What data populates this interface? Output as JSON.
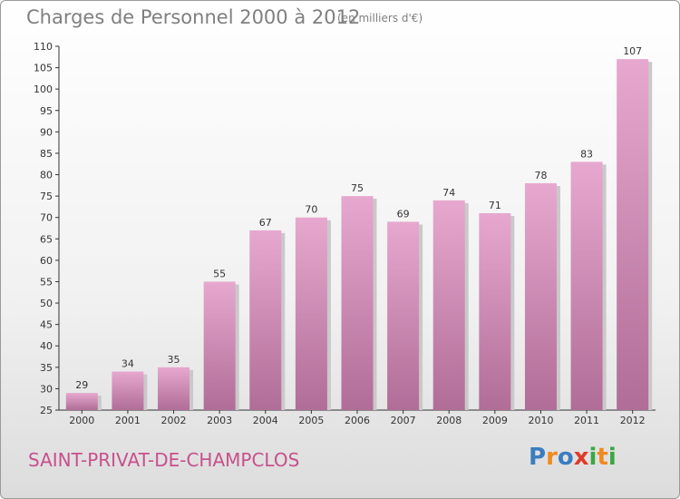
{
  "header": {
    "title": "Charges de Personnel 2000 à 2012",
    "subtitle": "(en milliers d'€)"
  },
  "footer": {
    "town": "SAINT-PRIVAT-DE-CHAMPCLOS",
    "logo_text": "Proxiti",
    "logo_letters": [
      {
        "ch": "P",
        "color": "#3a7dc0"
      },
      {
        "ch": "r",
        "color": "#f08a1e"
      },
      {
        "ch": "o",
        "color": "#3a7dc0"
      },
      {
        "ch": "x",
        "color": "#e03a2a"
      },
      {
        "ch": "i",
        "color": "#39a844"
      },
      {
        "ch": "t",
        "color": "#f08a1e"
      },
      {
        "ch": "i",
        "color": "#39a844"
      }
    ]
  },
  "colors": {
    "bar_top": "#e7a8cf",
    "bar_bottom": "#b06d97",
    "bar_shadow": "#c9c9c9",
    "title": "#7f7f7f",
    "town": "#c8508c"
  },
  "chart_data": {
    "type": "bar",
    "title": "Charges de Personnel 2000 à 2012",
    "subtitle": "(en milliers d'€)",
    "categories": [
      "2000",
      "2001",
      "2002",
      "2003",
      "2004",
      "2005",
      "2006",
      "2007",
      "2008",
      "2009",
      "2010",
      "2011",
      "2012"
    ],
    "values": [
      29,
      34,
      35,
      55,
      67,
      70,
      75,
      69,
      74,
      71,
      78,
      83,
      107
    ],
    "ylim": [
      25,
      110
    ],
    "yticks": [
      25,
      30,
      35,
      40,
      45,
      50,
      55,
      60,
      65,
      70,
      75,
      80,
      85,
      90,
      95,
      100,
      105,
      110
    ],
    "grid": false,
    "data_labels": true
  }
}
